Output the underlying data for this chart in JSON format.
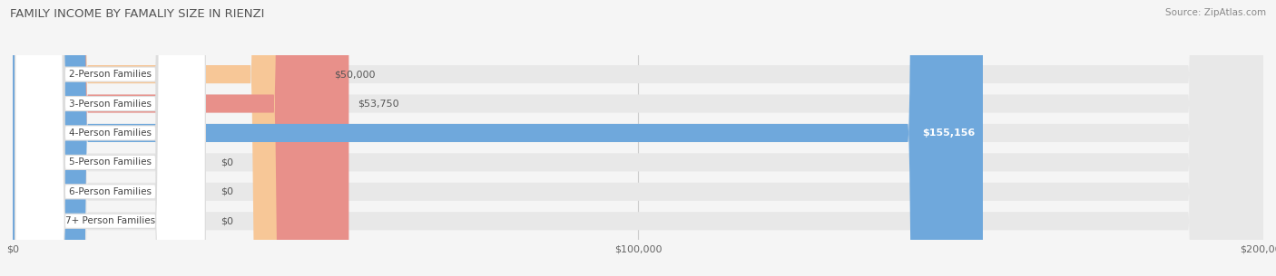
{
  "title": "FAMILY INCOME BY FAMALIY SIZE IN RIENZI",
  "source": "Source: ZipAtlas.com",
  "categories": [
    "2-Person Families",
    "3-Person Families",
    "4-Person Families",
    "5-Person Families",
    "6-Person Families",
    "7+ Person Families"
  ],
  "values": [
    50000,
    53750,
    155156,
    0,
    0,
    0
  ],
  "bar_colors": [
    "#f7c797",
    "#e8908a",
    "#6fa8dc",
    "#c3a8d1",
    "#7ecec4",
    "#a8b8e8"
  ],
  "label_colors": [
    "#333333",
    "#333333",
    "#ffffff",
    "#333333",
    "#333333",
    "#333333"
  ],
  "value_labels": [
    "$50,000",
    "$53,750",
    "$155,156",
    "$0",
    "$0",
    "$0"
  ],
  "xmax": 200000,
  "xtick_labels": [
    "$0",
    "$100,000",
    "$200,000"
  ],
  "background_color": "#f5f5f5",
  "bar_bg_color": "#e8e8e8",
  "label_box_color": "#ffffff",
  "label_box_border": "#dddddd"
}
